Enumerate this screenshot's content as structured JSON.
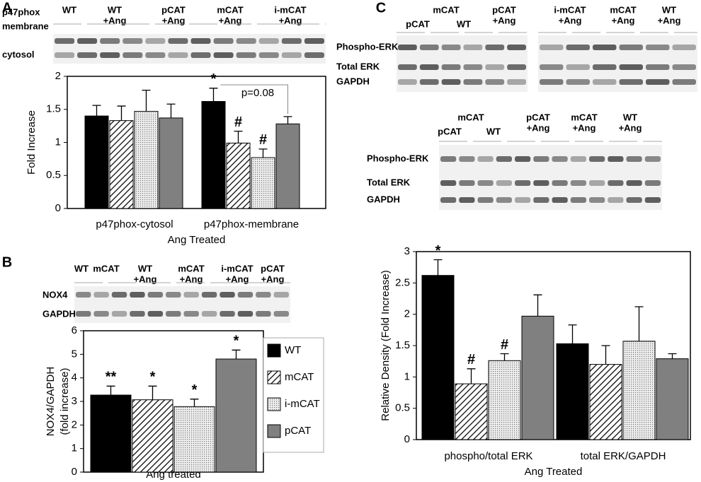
{
  "chart_data": [
    {
      "type": "bar",
      "panel": "A",
      "ylabel": "Fold Increase",
      "xlabel": "Ang Treated",
      "categories": [
        "p47phox-cytosol",
        "p47phox-membrane"
      ],
      "ylim": [
        0,
        2
      ],
      "yticks": [
        0,
        0.5,
        1,
        1.5,
        2
      ],
      "bracket_label": "p=0.08",
      "series": [
        {
          "color": "#000000",
          "values": [
            1.4,
            1.62
          ],
          "errors": [
            0.16,
            0.2
          ],
          "annotations": [
            null,
            "*"
          ]
        },
        {
          "color": "#000000",
          "pattern": "diagonal",
          "values": [
            1.33,
            0.99
          ],
          "errors": [
            0.22,
            0.18
          ],
          "annotations": [
            null,
            "#"
          ]
        },
        {
          "color": "#888888",
          "pattern": "dots",
          "values": [
            1.47,
            0.77
          ],
          "errors": [
            0.32,
            0.13
          ],
          "annotations": [
            null,
            "#"
          ]
        },
        {
          "color": "#808080",
          "values": [
            1.37,
            1.28
          ],
          "errors": [
            0.21,
            0.11
          ],
          "annotations": [
            null,
            null
          ]
        }
      ]
    },
    {
      "type": "bar",
      "panel": "B",
      "ylabel": [
        "NOX4/GAPDH",
        "(fold increase)"
      ],
      "xlabel": "Ang treated",
      "ylim": [
        0,
        6
      ],
      "yticks": [
        0,
        1,
        2,
        3,
        4,
        5,
        6
      ],
      "legend": "right",
      "series": [
        {
          "name": "WT",
          "color": "#000000",
          "values": [
            3.27
          ],
          "errors": [
            0.38
          ],
          "annotations": [
            "**"
          ]
        },
        {
          "name": "mCAT",
          "color": "#000000",
          "pattern": "diagonal",
          "values": [
            3.07
          ],
          "errors": [
            0.58
          ],
          "annotations": [
            "*"
          ]
        },
        {
          "name": "i-mCAT",
          "color": "#888888",
          "pattern": "dots",
          "values": [
            2.78
          ],
          "errors": [
            0.32
          ],
          "annotations": [
            "*"
          ]
        },
        {
          "name": "pCAT",
          "color": "#808080",
          "values": [
            4.8
          ],
          "errors": [
            0.38
          ],
          "annotations": [
            "*"
          ]
        }
      ]
    },
    {
      "type": "bar",
      "panel": "C",
      "ylabel": "Relative Density (Fold Increase)",
      "xlabel": "Ang Treated",
      "categories": [
        "phospho/total ERK",
        "total ERK/GAPDH"
      ],
      "ylim": [
        0,
        3
      ],
      "yticks": [
        0,
        0.5,
        1,
        1.5,
        2,
        2.5,
        3
      ],
      "series": [
        {
          "color": "#000000",
          "values": [
            2.62,
            1.53
          ],
          "errors": [
            0.25,
            0.3
          ],
          "annotations": [
            "*",
            null
          ]
        },
        {
          "color": "#000000",
          "pattern": "diagonal",
          "values": [
            0.89,
            1.2
          ],
          "errors": [
            0.24,
            0.3
          ],
          "annotations": [
            "#",
            null
          ]
        },
        {
          "color": "#888888",
          "pattern": "dots",
          "values": [
            1.26,
            1.57
          ],
          "errors": [
            0.11,
            0.55
          ],
          "annotations": [
            "#",
            null
          ]
        },
        {
          "color": "#808080",
          "values": [
            1.97,
            1.29
          ],
          "errors": [
            0.34,
            0.08
          ],
          "annotations": [
            null,
            null
          ]
        }
      ]
    }
  ],
  "blots": [
    {
      "lanes": [
        [
          "WT"
        ],
        [
          "WT",
          "+Ang"
        ],
        [
          "pCAT",
          "+Ang"
        ],
        [
          "mCAT",
          "+Ang"
        ],
        [
          "i-mCAT",
          "+Ang"
        ]
      ],
      "rows": [
        [
          "p47phox",
          "membrane"
        ],
        [
          "cytosol"
        ]
      ]
    },
    {
      "lanes": [
        [
          "WT"
        ],
        [
          "mCAT"
        ],
        [
          "WT",
          "+Ang"
        ],
        [
          "mCAT",
          "+Ang"
        ],
        [
          "i-mCAT",
          "+Ang"
        ],
        [
          "pCAT",
          "+Ang"
        ]
      ],
      "rows": [
        [
          "NOX4"
        ],
        [
          "GAPDH"
        ]
      ]
    },
    {
      "lanes": [
        [
          "pCAT"
        ],
        [
          "mCAT"
        ],
        [
          "WT"
        ],
        [
          "pCAT",
          "+Ang"
        ]
      ],
      "rows": [
        [
          "Phospho-ERK"
        ],
        [
          "Total ERK"
        ],
        [
          "GAPDH"
        ]
      ]
    },
    {
      "lanes": [
        [
          "i-mCAT",
          "+Ang"
        ],
        [
          "mCAT",
          "+Ang"
        ],
        [
          "WT",
          "+Ang"
        ]
      ]
    },
    {
      "lanes": [
        [
          "pCAT"
        ],
        [
          "mCAT"
        ],
        [
          "WT"
        ],
        [
          "pCAT",
          "+Ang"
        ],
        [
          "mCAT",
          "+Ang"
        ],
        [
          "WT",
          "+Ang"
        ]
      ],
      "rows": [
        [
          "Phospho-ERK"
        ],
        [
          "Total ERK"
        ],
        [
          "GAPDH"
        ]
      ]
    }
  ]
}
